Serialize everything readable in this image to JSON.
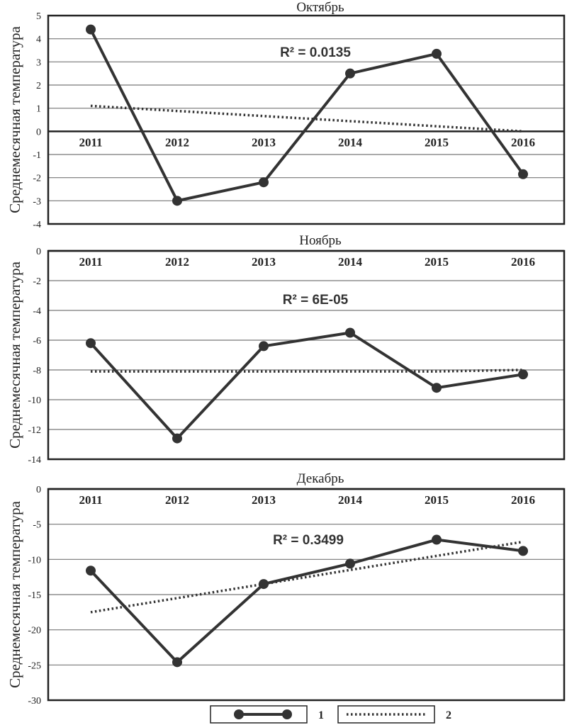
{
  "chart_data": [
    {
      "type": "line",
      "title": "Октябрь",
      "ylabel": "Среднемесячная температура",
      "ylim": [
        -4,
        5
      ],
      "yticks": [
        5,
        4,
        3,
        2,
        1,
        0,
        -1,
        -2,
        -3,
        -4
      ],
      "x": [
        "2011",
        "2012",
        "2013",
        "2014",
        "2015",
        "2016"
      ],
      "x_axis_at": 0,
      "annotation": "R² = 0.0135",
      "series": [
        {
          "name": "1",
          "style": "solid-markers",
          "values": [
            4.4,
            -3.0,
            -2.2,
            2.5,
            3.35,
            -1.85
          ]
        },
        {
          "name": "2",
          "style": "dotted-trend",
          "values": [
            1.1,
            0.88,
            0.66,
            0.44,
            0.22,
            0.0
          ]
        }
      ]
    },
    {
      "type": "line",
      "title": "Ноябрь",
      "ylabel": "Среднемесячная температура",
      "ylim": [
        -14,
        0
      ],
      "yticks": [
        0,
        -2,
        -4,
        -6,
        -8,
        -10,
        -12,
        -14
      ],
      "x": [
        "2011",
        "2012",
        "2013",
        "2014",
        "2015",
        "2016"
      ],
      "x_axis_at": 0,
      "annotation": "R² = 6E-05",
      "series": [
        {
          "name": "1",
          "style": "solid-markers",
          "values": [
            -6.2,
            -12.6,
            -6.4,
            -5.5,
            -9.2,
            -8.3
          ]
        },
        {
          "name": "2",
          "style": "dotted-trend",
          "values": [
            -8.1,
            -8.1,
            -8.1,
            -8.1,
            -8.1,
            -8.0
          ]
        }
      ]
    },
    {
      "type": "line",
      "title": "Декабрь",
      "ylabel": "Среднемесячная температура",
      "ylim": [
        -30,
        0
      ],
      "yticks": [
        0,
        -5,
        -10,
        -15,
        -20,
        -25,
        -30
      ],
      "x": [
        "2011",
        "2012",
        "2013",
        "2014",
        "2015",
        "2016"
      ],
      "x_axis_at": 0,
      "annotation": "R² = 0.3499",
      "series": [
        {
          "name": "1",
          "style": "solid-markers",
          "values": [
            -11.6,
            -24.6,
            -13.5,
            -10.6,
            -7.2,
            -8.8
          ]
        },
        {
          "name": "2",
          "style": "dotted-trend",
          "values": [
            -17.5,
            -15.5,
            -13.5,
            -11.5,
            -9.5,
            -7.5
          ]
        }
      ]
    }
  ],
  "legend": {
    "position": "bottom-center",
    "items": [
      {
        "label": "1",
        "style": "solid-markers"
      },
      {
        "label": "2",
        "style": "dotted"
      }
    ]
  },
  "colors": {
    "line": "#333333",
    "grid": "#777777",
    "frame": "#222222"
  }
}
